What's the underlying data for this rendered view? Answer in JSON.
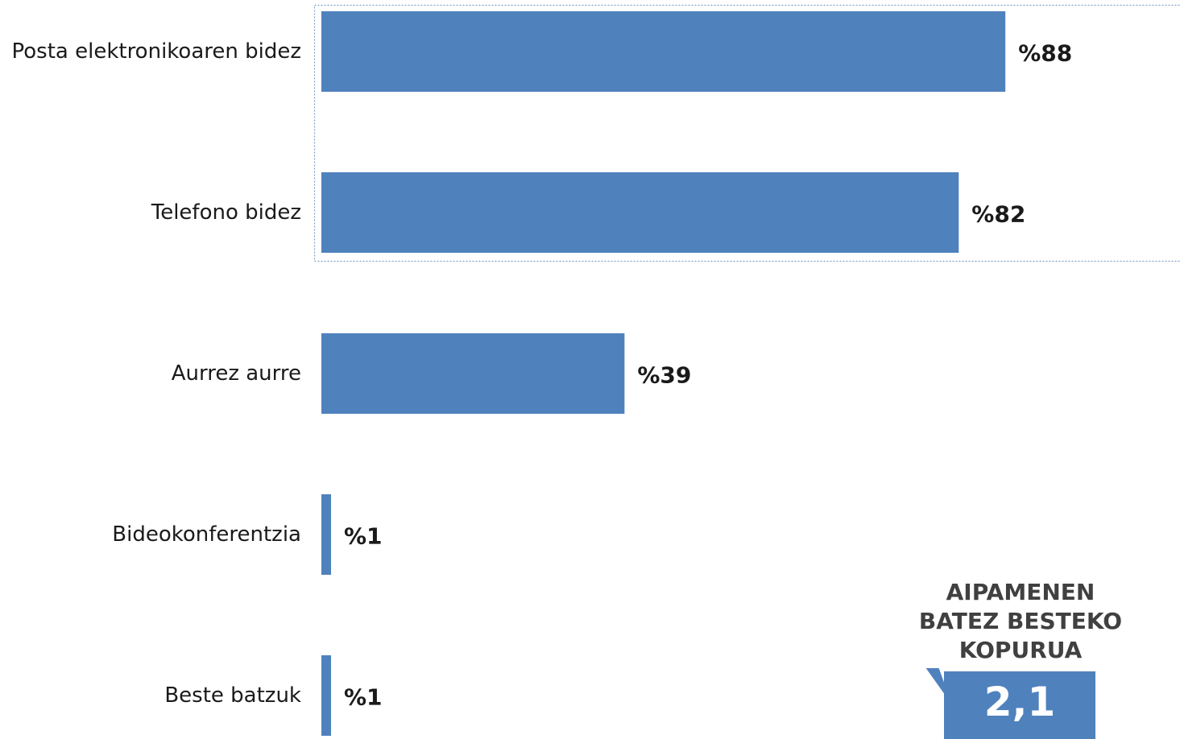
{
  "chart_data": {
    "type": "bar",
    "orientation": "horizontal",
    "categories": [
      "Posta elektronikoaren bidez",
      "Telefono bidez",
      "Aurrez aurre",
      "Bideokonferentzia",
      "Beste batzuk"
    ],
    "values": [
      88,
      82,
      39,
      1,
      1
    ],
    "value_labels": [
      "%88",
      "%82",
      "%39",
      "%1",
      "%1"
    ],
    "xlim": [
      0,
      100
    ],
    "grid": false,
    "bar_color": "#4f81bd"
  },
  "callout": {
    "title": "AIPAMENEN\nBATEZ BESTEKO\nKOPURUA",
    "value": "2,1"
  },
  "colors": {
    "bar": "#4f81bd",
    "highlight_border": "#7f9fbf",
    "callout_title": "#404040"
  }
}
